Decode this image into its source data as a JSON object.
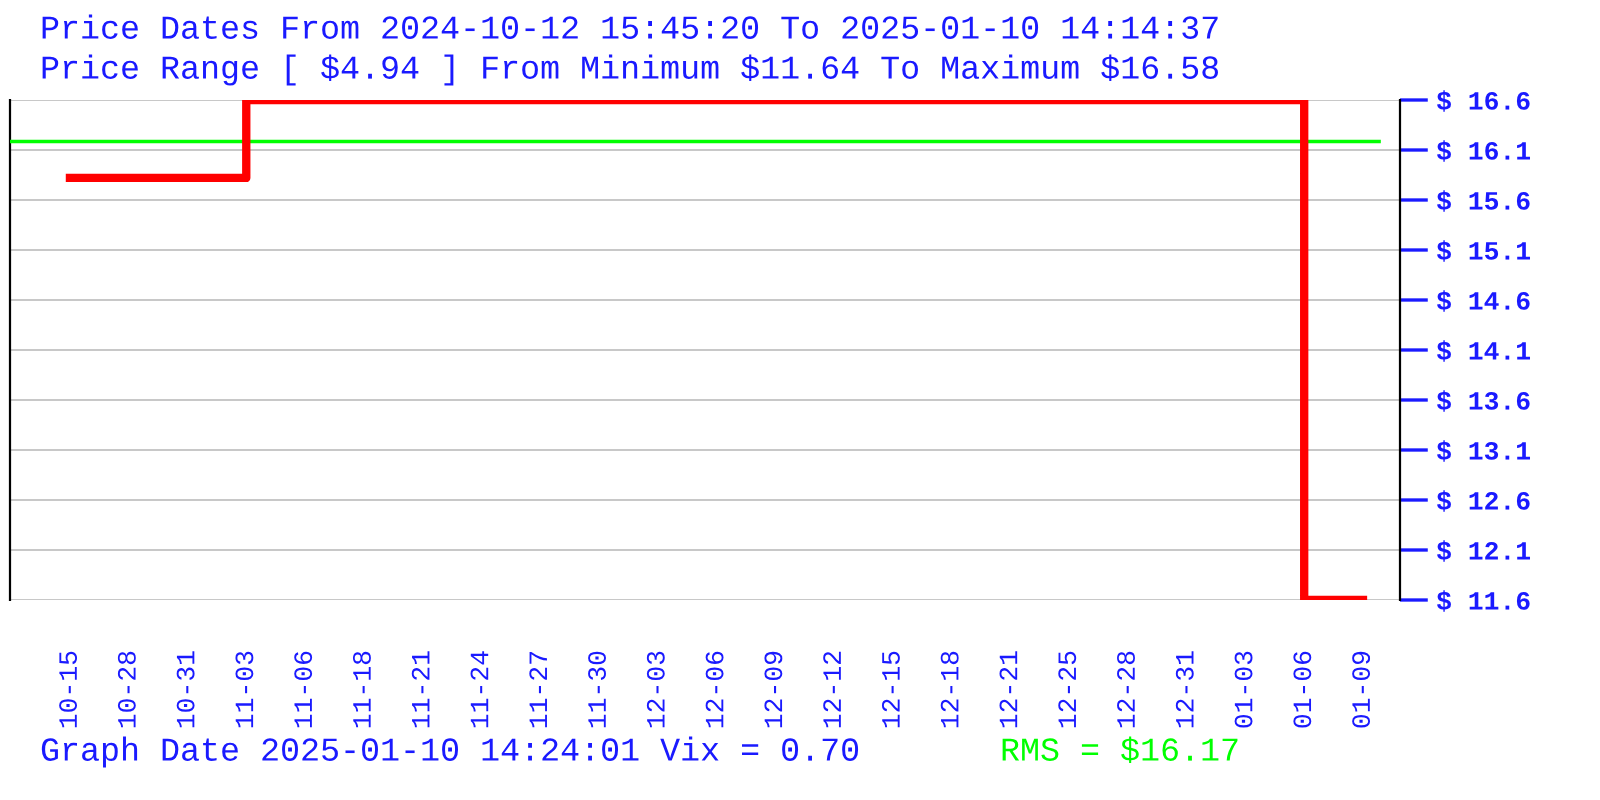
{
  "chart_data": {
    "type": "step",
    "title": "Price Dates From 2024-10-12 15:45:20 To 2025-01-10 14:14:37",
    "subtitle": "Price Range [ $4.94 ] From Minimum $11.64 To Maximum $16.58",
    "categories": [
      "10-15",
      "10-28",
      "10-31",
      "11-03",
      "11-06",
      "11-18",
      "11-21",
      "11-24",
      "11-27",
      "11-30",
      "12-03",
      "12-06",
      "12-09",
      "12-12",
      "12-15",
      "12-18",
      "12-21",
      "12-25",
      "12-28",
      "12-31",
      "01-03",
      "01-06",
      "01-09"
    ],
    "series": [
      {
        "color": "#ff0000",
        "values": [
          15.81,
          15.81,
          15.81,
          16.58,
          16.58,
          16.58,
          16.58,
          16.58,
          16.58,
          16.58,
          16.58,
          16.58,
          16.58,
          16.58,
          16.58,
          16.58,
          16.58,
          16.58,
          16.58,
          16.58,
          16.58,
          11.64,
          11.64
        ]
      }
    ],
    "ylim": [
      11.64,
      16.58
    ],
    "yticks": [
      {
        "value": 11.64,
        "label": "$ 11.6"
      },
      {
        "value": 12.134,
        "label": "$ 12.1"
      },
      {
        "value": 12.628,
        "label": "$ 12.6"
      },
      {
        "value": 13.122,
        "label": "$ 13.1"
      },
      {
        "value": 13.616,
        "label": "$ 13.6"
      },
      {
        "value": 14.11,
        "label": "$ 14.1"
      },
      {
        "value": 14.604,
        "label": "$ 14.6"
      },
      {
        "value": 15.098,
        "label": "$ 15.1"
      },
      {
        "value": 15.592,
        "label": "$ 15.6"
      },
      {
        "value": 16.086,
        "label": "$ 16.1"
      },
      {
        "value": 16.58,
        "label": "$ 16.6"
      }
    ],
    "ref_lines": [
      {
        "axis": "y",
        "value": 16.17,
        "label": "RMS = $16.17",
        "color": "#00ff00"
      }
    ],
    "annotations": [
      "Graph Date 2025-01-10 14:24:01 Vix = 0.70"
    ],
    "grid": "y",
    "line_style": "solid",
    "marker": "none"
  }
}
